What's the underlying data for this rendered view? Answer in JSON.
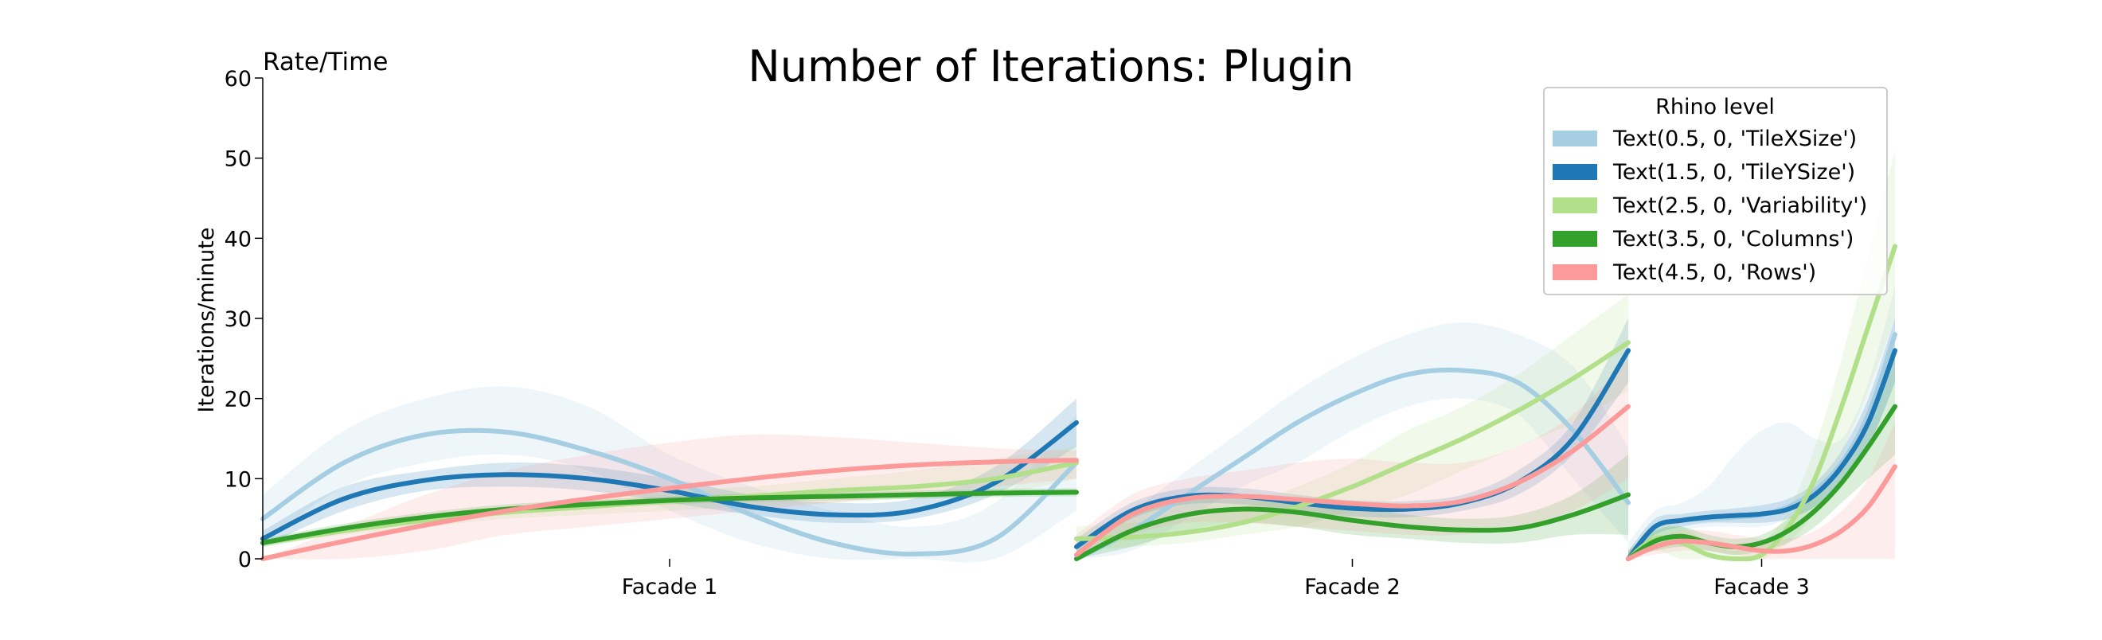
{
  "chart_data": {
    "type": "line",
    "title": "Number of Iterations: Plugin",
    "corner_label": "Rate/Time",
    "ylabel": "Iterations/minute",
    "xlabel": "",
    "ylim": [
      0,
      60
    ],
    "yticks": [
      0,
      10,
      20,
      30,
      40,
      50,
      60
    ],
    "grid": false,
    "legend": {
      "title": "Rhino level",
      "placement": "top-right",
      "entries": [
        "Text(0.5, 0, 'TileXSize')",
        "Text(1.5, 0, 'TileYSize')",
        "Text(2.5, 0, 'Variability')",
        "Text(3.5, 0, 'Columns')",
        "Text(4.5, 0, 'Rows')"
      ]
    },
    "colors": [
      "#a6cee3",
      "#1f78b4",
      "#b2df8a",
      "#33a02c",
      "#fb9a99"
    ],
    "panels": [
      {
        "label": "Facade 1",
        "x": [
          0,
          0.1,
          0.2,
          0.3,
          0.4,
          0.5,
          0.6,
          0.7,
          0.8,
          0.9,
          1.0
        ],
        "series": [
          {
            "values": [
              5,
              12,
              15.5,
              15.8,
              13.5,
              10,
              5.5,
              2,
              0.6,
              2.5,
              12
            ],
            "lower": [
              2,
              9,
              12,
              13,
              11,
              6,
              2,
              0,
              0,
              0,
              6
            ],
            "upper": [
              8,
              16,
              20,
              21.5,
              19,
              13,
              9,
              6,
              4,
              7,
              18
            ]
          },
          {
            "values": [
              2.5,
              7.5,
              9.8,
              10.5,
              10,
              8.5,
              6.5,
              5.5,
              6,
              9.5,
              17
            ],
            "lower": [
              1.5,
              6,
              8.5,
              9,
              8.5,
              7,
              5.5,
              4.5,
              5,
              8,
              14
            ],
            "upper": [
              3.5,
              9,
              11,
              12,
              11.5,
              10,
              8,
              7,
              7.5,
              11.5,
              20
            ]
          },
          {
            "values": [
              2,
              3.5,
              4.8,
              5.8,
              6.5,
              7.2,
              7.8,
              8.5,
              9,
              10,
              12
            ],
            "lower": [
              1.5,
              3,
              4,
              5,
              5.5,
              6,
              6.5,
              7,
              7.5,
              8,
              10
            ],
            "upper": [
              2.5,
              4,
              5.5,
              6.5,
              7.5,
              8.5,
              9,
              10,
              11,
              12.5,
              14
            ]
          },
          {
            "values": [
              2,
              3.8,
              5.2,
              6.2,
              6.8,
              7.3,
              7.6,
              7.8,
              8,
              8.2,
              8.3
            ],
            "lower": [
              1.5,
              3.2,
              4.6,
              5.6,
              6.3,
              6.8,
              7.1,
              7.3,
              7.5,
              7.7,
              7.8
            ],
            "upper": [
              2.5,
              4.4,
              5.8,
              6.8,
              7.3,
              7.8,
              8.1,
              8.3,
              8.5,
              8.7,
              8.8
            ]
          },
          {
            "values": [
              0,
              2.2,
              4.2,
              6,
              7.5,
              8.8,
              10,
              11,
              11.7,
              12.1,
              12.3
            ],
            "lower": [
              0,
              0,
              1,
              3,
              4,
              5,
              6,
              7,
              8,
              9,
              10
            ],
            "upper": [
              0,
              4,
              8,
              11,
              13,
              14.5,
              15.5,
              15.2,
              14.5,
              13.8,
              13.5
            ]
          }
        ]
      },
      {
        "label": "Facade 2",
        "x": [
          0,
          0.1,
          0.2,
          0.3,
          0.4,
          0.5,
          0.6,
          0.7,
          0.8,
          0.9,
          1.0
        ],
        "series": [
          {
            "values": [
              0,
              3.5,
              8,
              12.5,
              17,
              20.5,
              23,
              23.5,
              22,
              16,
              7
            ],
            "lower": [
              0,
              1,
              5,
              9,
              12,
              16,
              19,
              20,
              18,
              10,
              2
            ],
            "upper": [
              2,
              6,
              11,
              16,
              21,
              25,
              28,
              29.5,
              28,
              24,
              14
            ]
          },
          {
            "values": [
              1.5,
              6,
              7.8,
              7.8,
              7,
              6.3,
              6.2,
              7,
              9.5,
              15,
              26
            ],
            "lower": [
              0.5,
              5,
              6.8,
              6.8,
              6,
              5.3,
              5.2,
              6,
              8,
              13,
              22
            ],
            "upper": [
              2.5,
              7,
              8.8,
              8.8,
              8,
              7.3,
              7.2,
              8,
              11,
              17,
              30
            ]
          },
          {
            "values": [
              2.5,
              2.7,
              3.3,
              4.5,
              6.5,
              9,
              12,
              15,
              18.5,
              22.5,
              27
            ],
            "lower": [
              1,
              1.5,
              2,
              3,
              4,
              6,
              8,
              11,
              14,
              17,
              21
            ],
            "upper": [
              4,
              4.5,
              5,
              6.5,
              9,
              12,
              16,
              19,
              23,
              28,
              33
            ]
          },
          {
            "values": [
              0,
              3.5,
              5.5,
              6.2,
              5.8,
              4.8,
              4,
              3.6,
              3.8,
              5.5,
              8
            ],
            "lower": [
              0,
              1.5,
              3.5,
              4.5,
              4,
              3,
              2.5,
              2,
              2,
              3,
              3
            ],
            "upper": [
              1,
              5.5,
              7.5,
              8,
              7.5,
              6.5,
              5.5,
              5,
              5.5,
              8,
              13
            ]
          },
          {
            "values": [
              0.5,
              5.5,
              7.5,
              7.8,
              7.4,
              6.9,
              6.6,
              7.2,
              9.5,
              13.5,
              19
            ],
            "lower": [
              0,
              3,
              4.5,
              4.5,
              4,
              3.5,
              3,
              3,
              4,
              6,
              10
            ],
            "upper": [
              3,
              8,
              10,
              11,
              12,
              12.5,
              12,
              12,
              14,
              18,
              25
            ]
          }
        ]
      },
      {
        "label": "Facade 3",
        "x": [
          0,
          0.1,
          0.2,
          0.3,
          0.4,
          0.5,
          0.6,
          0.7,
          0.8,
          0.9,
          1.0
        ],
        "series": [
          {
            "values": [
              0,
              4,
              4.8,
              5,
              5.2,
              5.5,
              6.5,
              8.5,
              12,
              18,
              28
            ],
            "lower": [
              0,
              2,
              3.5,
              4,
              4,
              4,
              5,
              6.5,
              9,
              14,
              22
            ],
            "upper": [
              2,
              6,
              7,
              9,
              13,
              16,
              17,
              15,
              15,
              22,
              34
            ]
          },
          {
            "values": [
              0,
              4,
              4.8,
              5.2,
              5.4,
              5.6,
              6.2,
              8,
              11.5,
              17,
              26
            ],
            "lower": [
              0,
              3,
              4,
              4.5,
              4.5,
              4.5,
              5,
              6.5,
              9.5,
              14,
              22
            ],
            "upper": [
              1,
              5,
              5.6,
              6,
              6.3,
              6.7,
              7.5,
              9.5,
              13.5,
              20,
              30
            ]
          },
          {
            "values": [
              0,
              2.5,
              2,
              0.5,
              0,
              0.5,
              4,
              10,
              19,
              29,
              39
            ],
            "lower": [
              0,
              1,
              0,
              0,
              0,
              0,
              2,
              6,
              13,
              21,
              30
            ],
            "upper": [
              1,
              4,
              4,
              2,
              1,
              2,
              6,
              14,
              25,
              38,
              51
            ]
          },
          {
            "values": [
              0,
              2.2,
              2.8,
              2,
              1.5,
              2,
              3.5,
              6,
              9.5,
              14,
              19
            ],
            "lower": [
              0,
              1,
              1.5,
              1,
              0.5,
              1,
              2,
              4,
              7,
              10,
              13
            ],
            "upper": [
              1,
              3.5,
              4,
              3,
              2.5,
              3,
              5,
              8,
              12,
              18,
              25
            ]
          },
          {
            "values": [
              0,
              1.5,
              2.2,
              2,
              1.5,
              1,
              1,
              1.8,
              3.5,
              6.5,
              11.5
            ],
            "lower": [
              0,
              0.5,
              1,
              1,
              0.5,
              0,
              0,
              0,
              0,
              0,
              0
            ],
            "upper": [
              1,
              2.5,
              3.5,
              3.5,
              3,
              2.5,
              2.5,
              3.5,
              6,
              10,
              17
            ]
          }
        ]
      }
    ]
  }
}
